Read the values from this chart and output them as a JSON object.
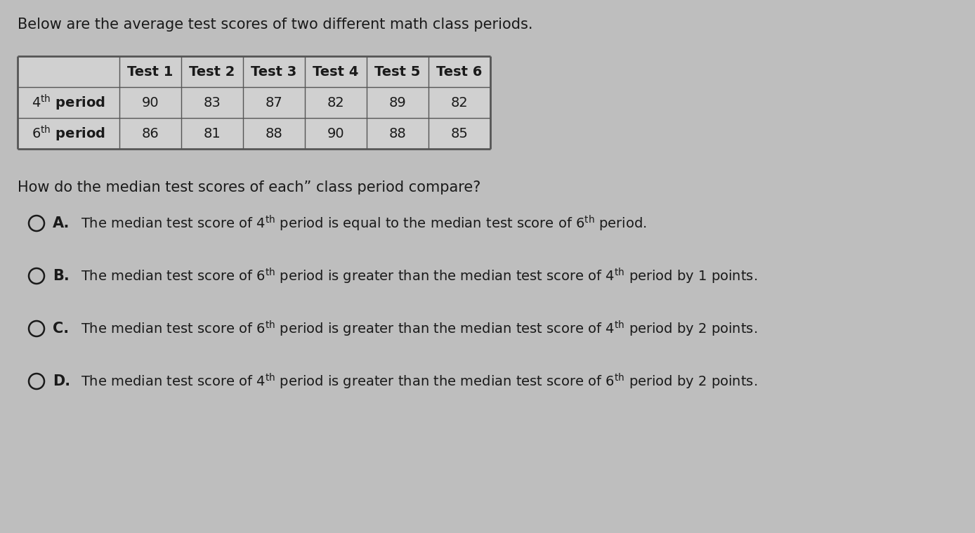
{
  "background_color": "#bebebe",
  "intro_text": "Below are the average test scores of two different math class periods.",
  "table": {
    "col_headers": [
      "",
      "Test 1",
      "Test 2",
      "Test 3",
      "Test 4",
      "Test 5",
      "Test 6"
    ],
    "rows": [
      {
        "label_base": "4",
        "label_superscript": "th",
        "label_suffix": " period",
        "values": [
          90,
          83,
          87,
          82,
          89,
          82
        ]
      },
      {
        "label_base": "6",
        "label_superscript": "th",
        "label_suffix": " period",
        "values": [
          86,
          81,
          88,
          90,
          88,
          85
        ]
      }
    ]
  },
  "question_text": "How do the median test scores of each” class period compare?",
  "choices": [
    {
      "letter": "A.",
      "plain_text": "The median test score of 4th period is equal to the median test score of 6th period.",
      "sup_positions": [
        {
          "after": "of 4",
          "sup": "th"
        },
        {
          "after": "of 6",
          "sup": "th"
        }
      ]
    },
    {
      "letter": "B.",
      "plain_text": "The median test score of 6th period is greater than the median test score of 4th period by 1 points.",
      "sup_positions": [
        {
          "after": "of 6",
          "sup": "th"
        },
        {
          "after": "of 4",
          "sup": "th"
        }
      ]
    },
    {
      "letter": "C.",
      "plain_text": "The median test score of 6th period is greater than the median test score of 4th period by 2 points.",
      "sup_positions": [
        {
          "after": "of 6",
          "sup": "th"
        },
        {
          "after": "of 4",
          "sup": "th"
        }
      ]
    },
    {
      "letter": "D.",
      "plain_text": "The median test score of 4th period is greater than the median test score of 6th period by 2 points.",
      "sup_positions": [
        {
          "after": "of 4",
          "sup": "th"
        },
        {
          "after": "of 6",
          "sup": "th"
        }
      ]
    }
  ],
  "font_color": "#1a1a1a",
  "table_border": "#555555",
  "intro_fontsize": 15,
  "question_fontsize": 15,
  "choice_fontsize": 14,
  "table_fontsize": 14
}
